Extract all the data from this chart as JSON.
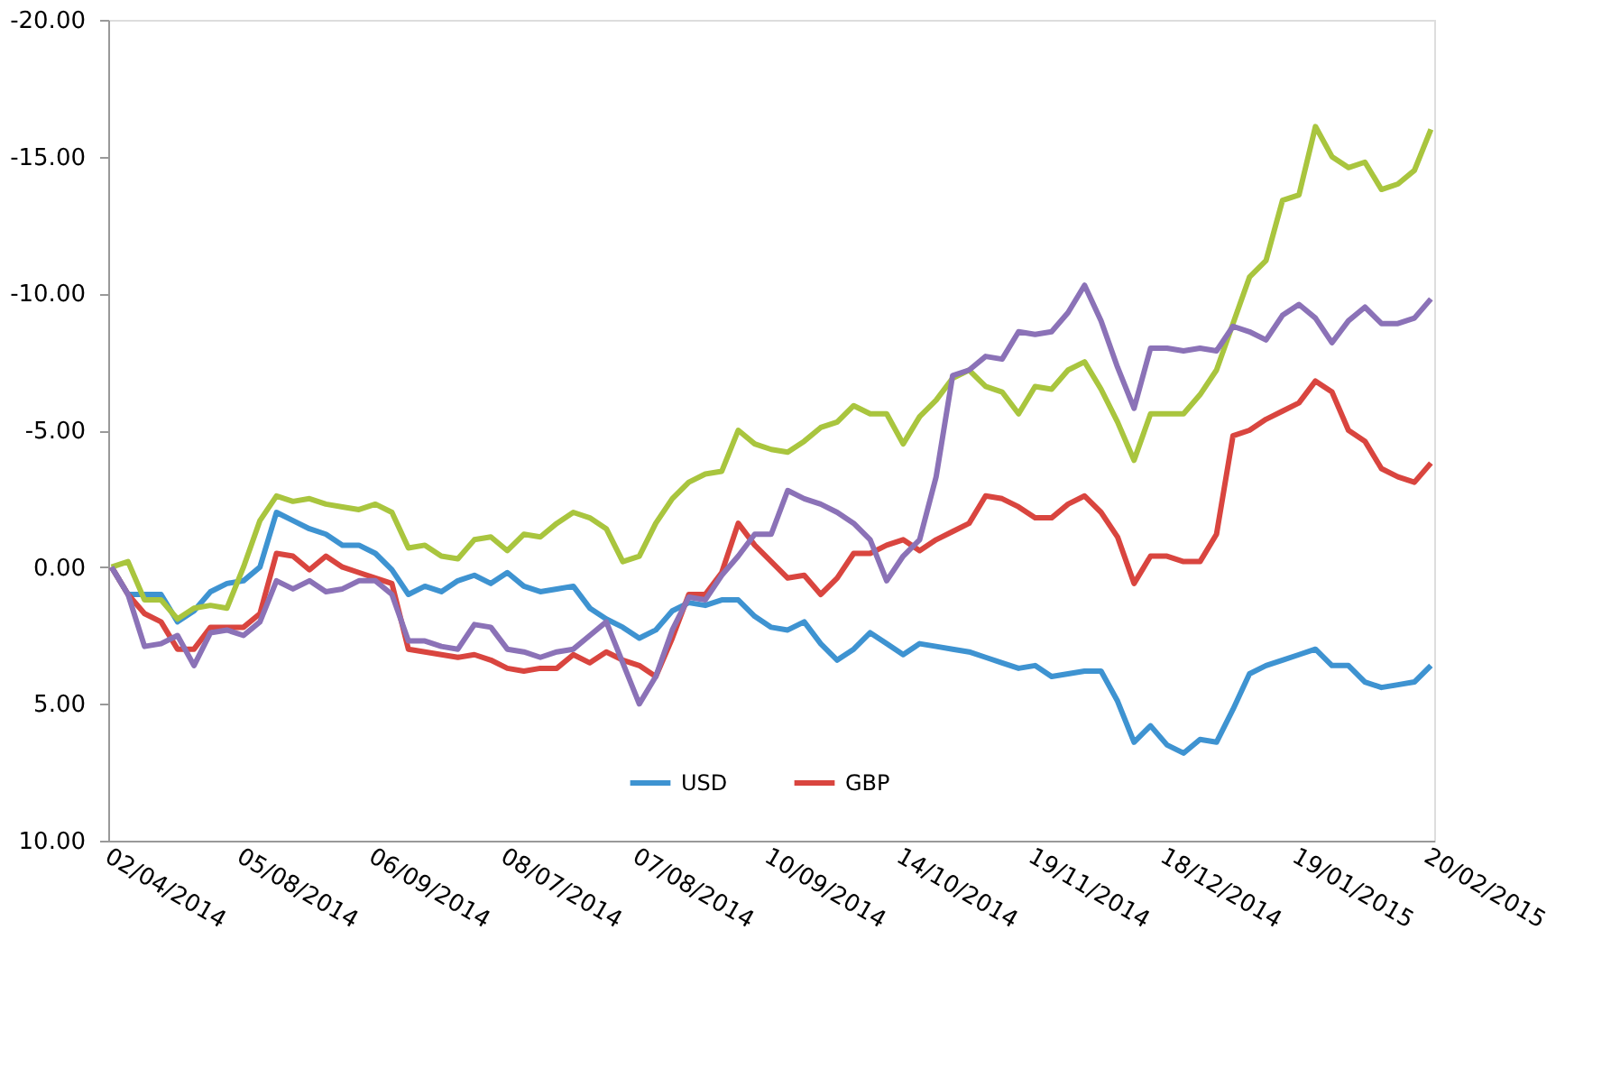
{
  "chart_data": {
    "type": "line",
    "categories": [
      "02/04/2014",
      null,
      null,
      null,
      null,
      null,
      null,
      null,
      "05/08/2014",
      null,
      null,
      null,
      null,
      null,
      null,
      null,
      "06/09/2014",
      null,
      null,
      null,
      null,
      null,
      null,
      null,
      "08/07/2014",
      null,
      null,
      null,
      null,
      null,
      null,
      null,
      "07/08/2014",
      null,
      null,
      null,
      null,
      null,
      null,
      null,
      "10/09/2014",
      null,
      null,
      null,
      null,
      null,
      null,
      null,
      "14/10/2014",
      null,
      null,
      null,
      null,
      null,
      null,
      null,
      "19/11/2014",
      null,
      null,
      null,
      null,
      null,
      null,
      null,
      "18/12/2014",
      null,
      null,
      null,
      null,
      null,
      null,
      null,
      "19/01/2015",
      null,
      null,
      null,
      null,
      null,
      null,
      null,
      "20/02/2015"
    ],
    "series": [
      {
        "name": "USD",
        "color": "#3e93d1",
        "values": [
          0,
          1.0,
          1.0,
          1.0,
          2.0,
          1.6,
          0.9,
          0.6,
          0.5,
          0.0,
          -2.0,
          -1.7,
          -1.4,
          -1.2,
          -0.8,
          -0.8,
          -0.5,
          0.1,
          1.0,
          0.7,
          0.9,
          0.5,
          0.3,
          0.6,
          0.2,
          0.7,
          0.9,
          0.8,
          0.7,
          1.5,
          1.9,
          2.2,
          2.6,
          2.3,
          1.6,
          1.3,
          1.4,
          1.2,
          1.2,
          1.8,
          2.2,
          2.3,
          2.0,
          2.8,
          3.4,
          3.0,
          2.4,
          2.8,
          3.2,
          2.8,
          2.9,
          3.0,
          3.1,
          3.3,
          3.5,
          3.7,
          3.6,
          4.0,
          3.9,
          3.8,
          3.8,
          4.9,
          6.4,
          5.8,
          6.5,
          6.8,
          6.3,
          6.4,
          5.2,
          3.9,
          3.6,
          3.4,
          3.2,
          3.0,
          3.6,
          3.6,
          4.2,
          4.4,
          4.3,
          4.2,
          3.6
        ]
      },
      {
        "name": "GBP",
        "color": "#d9453f",
        "values": [
          0,
          1.0,
          1.7,
          2.0,
          3.0,
          3.0,
          2.2,
          2.2,
          2.2,
          1.7,
          -0.5,
          -0.4,
          0.1,
          -0.4,
          0.0,
          0.2,
          0.4,
          0.6,
          3.0,
          3.1,
          3.2,
          3.3,
          3.2,
          3.4,
          3.7,
          3.8,
          3.7,
          3.7,
          3.2,
          3.5,
          3.1,
          3.4,
          3.6,
          4.0,
          2.6,
          1.0,
          1.0,
          0.2,
          -1.6,
          -0.8,
          -0.2,
          0.4,
          0.3,
          1.0,
          0.4,
          -0.5,
          -0.5,
          -0.8,
          -1.0,
          -0.6,
          -1.0,
          -1.3,
          -1.6,
          -2.6,
          -2.5,
          -2.2,
          -1.8,
          -1.8,
          -2.3,
          -2.6,
          -2.0,
          -1.1,
          0.6,
          -0.4,
          -0.4,
          -0.2,
          -0.2,
          -1.2,
          -4.8,
          -5.0,
          -5.4,
          -5.7,
          -6.0,
          -6.8,
          -6.4,
          -5.0,
          -4.6,
          -3.6,
          -3.3,
          -3.1,
          -3.8
        ]
      },
      {
        "color": "#a9c53e",
        "values": [
          0,
          -0.2,
          1.2,
          1.2,
          1.9,
          1.5,
          1.4,
          1.5,
          0.0,
          -1.7,
          -2.6,
          -2.4,
          -2.5,
          -2.3,
          -2.2,
          -2.1,
          -2.3,
          -2.0,
          -0.7,
          -0.8,
          -0.4,
          -0.3,
          -1.0,
          -1.1,
          -0.6,
          -1.2,
          -1.1,
          -1.6,
          -2.0,
          -1.8,
          -1.4,
          -0.2,
          -0.4,
          -1.6,
          -2.5,
          -3.1,
          -3.4,
          -3.5,
          -5.0,
          -4.5,
          -4.3,
          -4.2,
          -4.6,
          -5.1,
          -5.3,
          -5.9,
          -5.6,
          -5.6,
          -4.5,
          -5.5,
          -6.1,
          -6.9,
          -7.2,
          -6.6,
          -6.4,
          -5.6,
          -6.6,
          -6.5,
          -7.2,
          -7.5,
          -6.5,
          -5.3,
          -3.9,
          -5.6,
          -5.6,
          -5.6,
          -6.3,
          -7.2,
          -8.9,
          -10.6,
          -11.2,
          -13.4,
          -13.6,
          -16.1,
          -15.0,
          -14.6,
          -14.8,
          -13.8,
          -14.0,
          -14.5,
          -16.0
        ]
      },
      {
        "color": "#8b72b7",
        "values": [
          0,
          1.0,
          2.9,
          2.8,
          2.5,
          3.6,
          2.4,
          2.3,
          2.5,
          2.0,
          0.5,
          0.8,
          0.5,
          0.9,
          0.8,
          0.5,
          0.5,
          1.0,
          2.7,
          2.7,
          2.9,
          3.0,
          2.1,
          2.2,
          3.0,
          3.1,
          3.3,
          3.1,
          3.0,
          2.5,
          2.0,
          3.5,
          5.0,
          4.0,
          2.3,
          1.1,
          1.2,
          0.3,
          -0.4,
          -1.2,
          -1.2,
          -2.8,
          -2.5,
          -2.3,
          -2.0,
          -1.6,
          -1.0,
          0.5,
          -0.4,
          -1.0,
          -3.3,
          -7.0,
          -7.2,
          -7.7,
          -7.6,
          -8.6,
          -8.5,
          -8.6,
          -9.3,
          -10.3,
          -9.0,
          -7.3,
          -5.8,
          -8.0,
          -8.0,
          -7.9,
          -8.0,
          -7.9,
          -8.8,
          -8.6,
          -8.3,
          -9.2,
          -9.6,
          -9.1,
          -8.2,
          -9.0,
          -9.5,
          -8.9,
          -8.9,
          -9.1,
          -9.8
        ]
      }
    ],
    "ylim": [
      10,
      -20
    ],
    "yticks": [
      {
        "value": -20,
        "label": "-20.00"
      },
      {
        "value": -15,
        "label": "-15.00"
      },
      {
        "value": -10,
        "label": "-10.00"
      },
      {
        "value": -5,
        "label": "-5.00"
      },
      {
        "value": 0,
        "label": "0.00"
      },
      {
        "value": 5,
        "label": "5.00"
      },
      {
        "value": 10,
        "label": "10.00"
      }
    ],
    "grid": false,
    "legend": "bottom"
  }
}
